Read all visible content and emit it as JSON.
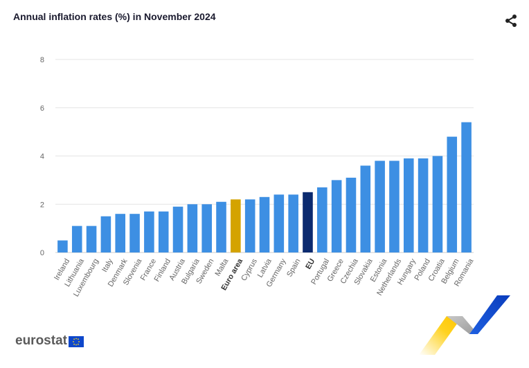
{
  "header": {
    "title": "Annual inflation rates (%) in November 2024",
    "share_icon": "share-icon"
  },
  "footer": {
    "logo_text": "eurostat",
    "flag_icon": "eu-flag-icon"
  },
  "colors": {
    "default_bar": "#3d8fe3",
    "euro_area_bar": "#d4a300",
    "eu_bar": "#0b2a6f",
    "grid": "#e4e4e4",
    "axis_text": "#666666"
  },
  "chart_data": {
    "type": "bar",
    "title": "Annual inflation rates (%) in November 2024",
    "xlabel": "",
    "ylabel": "",
    "ylim": [
      0,
      8
    ],
    "yticks": [
      0,
      2,
      4,
      6,
      8
    ],
    "grid": true,
    "categories": [
      "Ireland",
      "Lithuania",
      "Luxembourg",
      "Italy",
      "Denmark",
      "Slovenia",
      "France",
      "Finland",
      "Austria",
      "Bulgaria",
      "Sweden",
      "Malta",
      "Euro area",
      "Cyprus",
      "Latvia",
      "Germany",
      "Spain",
      "EU",
      "Portugal",
      "Greece",
      "Czechia",
      "Slovakia",
      "Estonia",
      "Netherlands",
      "Hungary",
      "Poland",
      "Croatia",
      "Belgium",
      "Romania"
    ],
    "values": [
      0.5,
      1.1,
      1.1,
      1.5,
      1.6,
      1.6,
      1.7,
      1.7,
      1.9,
      2.0,
      2.0,
      2.1,
      2.2,
      2.2,
      2.3,
      2.4,
      2.4,
      2.5,
      2.7,
      3.0,
      3.1,
      3.6,
      3.8,
      3.8,
      3.9,
      3.9,
      4.0,
      4.8,
      5.4
    ],
    "highlight": {
      "Euro area": "euro_area_bar",
      "EU": "eu_bar"
    },
    "bold_labels": [
      "Euro area",
      "EU"
    ]
  }
}
